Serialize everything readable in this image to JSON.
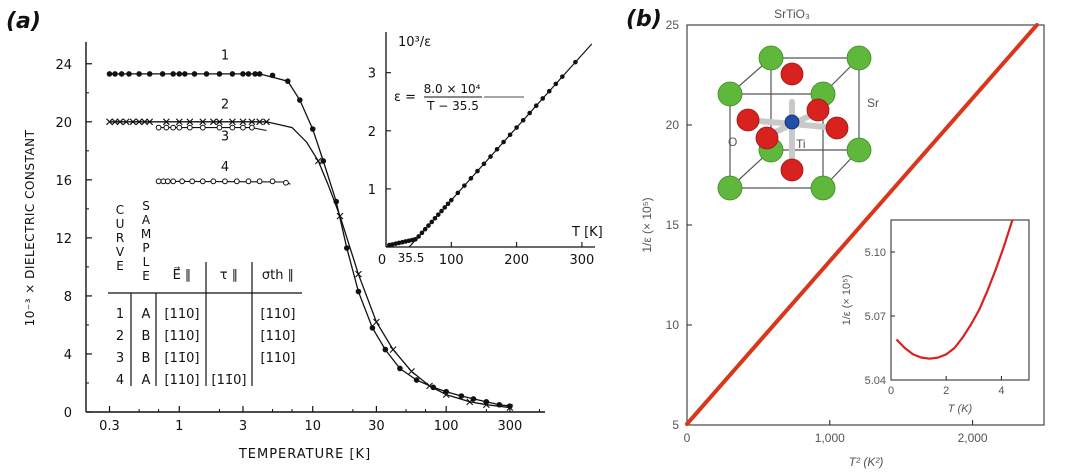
{
  "panels": {
    "a_label": "(a)",
    "b_label": "(b)"
  },
  "chart_data": [
    {
      "type": "scatter",
      "panel": "(a)",
      "xscale": "log",
      "xlim": [
        0.2,
        550
      ],
      "ylim": [
        0,
        25.5
      ],
      "xlabel": "TEMPERATURE [K]",
      "ylabel": "10⁻³ × DIELECTRIC CONSTANT",
      "xticks": [
        {
          "v": 0.3,
          "label": "0.3"
        },
        {
          "v": 1,
          "label": "1"
        },
        {
          "v": 3,
          "label": "3"
        },
        {
          "v": 10,
          "label": "10"
        },
        {
          "v": 30,
          "label": "30"
        },
        {
          "v": 100,
          "label": "100"
        },
        {
          "v": 300,
          "label": "300"
        }
      ],
      "yticks": [
        {
          "v": 0,
          "label": "0"
        },
        {
          "v": 4,
          "label": "4"
        },
        {
          "v": 8,
          "label": "8"
        },
        {
          "v": 12,
          "label": "12"
        },
        {
          "v": 16,
          "label": "16"
        },
        {
          "v": 20,
          "label": "20"
        },
        {
          "v": 24,
          "label": "24"
        }
      ],
      "series": [
        {
          "name": "1",
          "marker": "dot",
          "x": [
            0.3,
            0.33,
            0.37,
            0.42,
            0.5,
            0.6,
            0.75,
            0.9,
            1.0,
            1.1,
            1.3,
            1.6,
            2.0,
            2.5,
            3.0,
            3.3,
            3.7,
            4.0,
            5,
            6.5,
            8,
            10,
            12,
            15,
            18,
            22,
            28,
            35,
            45,
            60,
            80,
            100,
            130,
            160,
            200,
            250,
            300
          ],
          "y": [
            23.3,
            23.3,
            23.3,
            23.3,
            23.3,
            23.3,
            23.3,
            23.3,
            23.3,
            23.3,
            23.3,
            23.3,
            23.3,
            23.3,
            23.3,
            23.3,
            23.3,
            23.3,
            23.2,
            22.8,
            21.5,
            19.5,
            17.3,
            14.5,
            11.3,
            8.3,
            5.8,
            4.3,
            3.0,
            2.2,
            1.7,
            1.4,
            1.1,
            0.9,
            0.7,
            0.5,
            0.4
          ]
        },
        {
          "name": "2",
          "marker": "cross",
          "x": [
            0.3,
            0.33,
            0.36,
            0.4,
            0.45,
            0.5,
            0.55,
            0.6,
            0.8,
            1.0,
            1.2,
            1.5,
            1.8,
            2.0,
            2.5,
            3.0,
            3.5,
            4.0,
            4.5,
            11,
            16,
            22,
            30,
            40,
            55,
            75,
            100,
            150,
            200,
            300
          ],
          "y": [
            20.0,
            20.0,
            20.0,
            20.0,
            20.0,
            20.0,
            20.0,
            20.0,
            20.0,
            20.0,
            20.0,
            20.0,
            20.0,
            20.0,
            20.0,
            20.0,
            20.0,
            20.0,
            20.0,
            17.3,
            13.5,
            9.5,
            6.2,
            4.3,
            2.8,
            1.8,
            1.2,
            0.7,
            0.5,
            0.3
          ]
        },
        {
          "name": "3",
          "marker": "circle",
          "x": [
            0.7,
            0.8,
            0.9,
            1.0,
            1.2,
            1.5,
            2.0,
            2.5,
            3.0,
            3.5
          ],
          "y": [
            19.6,
            19.6,
            19.6,
            19.6,
            19.6,
            19.6,
            19.6,
            19.6,
            19.6,
            19.6
          ]
        },
        {
          "name": "4",
          "marker": "circle",
          "x": [
            0.7,
            0.76,
            0.82,
            0.9,
            1.05,
            1.25,
            1.5,
            1.8,
            2.2,
            2.7,
            3.3,
            4.0,
            5.0,
            6.3
          ],
          "y": [
            15.9,
            15.9,
            15.9,
            15.9,
            15.9,
            15.9,
            15.9,
            15.9,
            15.9,
            15.9,
            15.9,
            15.9,
            15.9,
            15.8
          ]
        }
      ],
      "curve_labels": [
        "1",
        "2",
        "3",
        "4"
      ],
      "table": {
        "headers": [
          "CURVE",
          "SAMPLE",
          "E⃗ ∥",
          "τ ∥",
          "σth ∥"
        ],
        "rows": [
          [
            "1",
            "A",
            "[110]",
            "",
            "[110]"
          ],
          [
            "2",
            "B",
            "[110]",
            "",
            "[110]"
          ],
          [
            "3",
            "B",
            "[11̄0]",
            "",
            "[110]"
          ],
          [
            "4",
            "A",
            "[110]",
            "[11̄0]",
            ""
          ]
        ]
      },
      "inset": {
        "type": "scatter",
        "xlim": [
          0,
          320
        ],
        "ylim": [
          0,
          3.7
        ],
        "xlabel": "T [K]",
        "ylabel": "10³/ε",
        "xticks": [
          {
            "v": 0,
            "label": "0"
          },
          {
            "v": 100,
            "label": "100"
          },
          {
            "v": 200,
            "label": "200"
          },
          {
            "v": 300,
            "label": "300"
          }
        ],
        "yticks": [
          {
            "v": 0,
            "label": "0"
          },
          {
            "v": 1,
            "label": "1"
          },
          {
            "v": 2,
            "label": "2"
          },
          {
            "v": 3,
            "label": "3"
          }
        ],
        "x_marker_label": "35.5",
        "formula": {
          "lhs": "ε =",
          "numerator": "8.0 × 10⁴",
          "denominator": "T − 35.5"
        },
        "points_x": [
          5,
          10,
          15,
          20,
          25,
          30,
          35,
          40,
          45,
          50,
          55,
          60,
          65,
          70,
          75,
          80,
          85,
          90,
          95,
          100,
          110,
          120,
          130,
          140,
          150,
          160,
          170,
          180,
          190,
          200,
          210,
          220,
          230,
          240,
          250,
          260,
          270,
          290
        ],
        "fit_x": [
          35.5,
          315
        ],
        "fit_slope": 0.0125,
        "fit_intercept_x": 35.5
      }
    },
    {
      "type": "line",
      "panel": "(b)",
      "title": "SrTiO₃",
      "xlim": [
        0,
        2500
      ],
      "ylim": [
        5,
        25
      ],
      "xlabel": "T² (K²)",
      "ylabel": "1/ε (× 10⁵)",
      "xticks": [
        {
          "v": 0,
          "label": "0"
        },
        {
          "v": 1000,
          "label": "1,000"
        },
        {
          "v": 2000,
          "label": "2,000"
        }
      ],
      "yticks": [
        {
          "v": 5,
          "label": "5"
        },
        {
          "v": 10,
          "label": "10"
        },
        {
          "v": 15,
          "label": "15"
        },
        {
          "v": 20,
          "label": "20"
        },
        {
          "v": 25,
          "label": "25"
        }
      ],
      "series": [
        {
          "x": [
            0,
            2450
          ],
          "y": [
            5.05,
            25
          ]
        }
      ],
      "line_color": "#d9371c",
      "crystal_labels": [
        "Sr",
        "O",
        "Ti"
      ],
      "atom_colors": {
        "Sr": "#5fb83c",
        "O": "#d8221f",
        "Ti": "#1f4fa8"
      },
      "inset": {
        "type": "line",
        "xlim": [
          0,
          5
        ],
        "ylim": [
          5.04,
          5.115
        ],
        "xlabel": "T (K)",
        "ylabel": "1/ε (× 10⁵)",
        "xticks": [
          {
            "v": 0,
            "label": "0"
          },
          {
            "v": 2,
            "label": "2"
          },
          {
            "v": 4,
            "label": "4"
          }
        ],
        "yticks": [
          {
            "v": 5.04,
            "label": "5.04"
          },
          {
            "v": 5.07,
            "label": "5.07"
          },
          {
            "v": 5.1,
            "label": "5.10"
          }
        ],
        "x": [
          0.2,
          0.5,
          0.8,
          1.1,
          1.4,
          1.7,
          2.0,
          2.3,
          2.6,
          2.9,
          3.2,
          3.5,
          3.8,
          4.1,
          4.4
        ],
        "y": [
          5.059,
          5.055,
          5.052,
          5.0505,
          5.05,
          5.0505,
          5.052,
          5.055,
          5.06,
          5.066,
          5.073,
          5.082,
          5.092,
          5.103,
          5.115
        ]
      }
    }
  ]
}
